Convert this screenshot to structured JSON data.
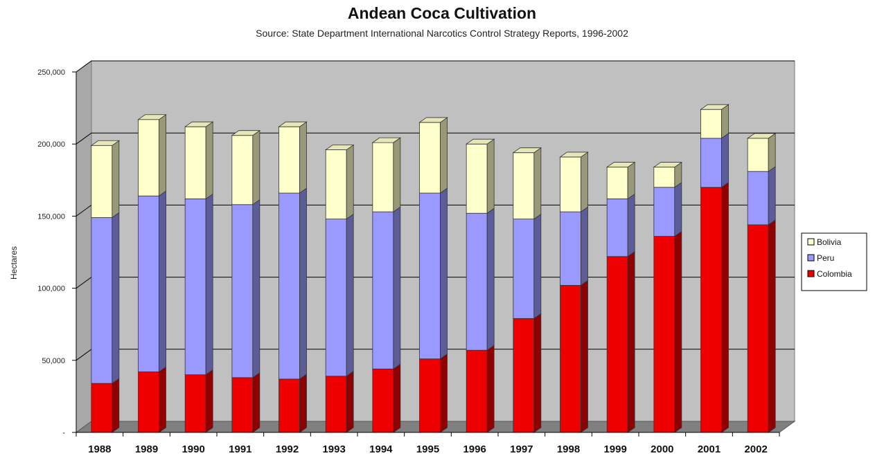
{
  "chart_data": {
    "type": "bar",
    "stacked": true,
    "three_d": true,
    "title": "Andean Coca Cultivation",
    "subtitle": "Source: State Department International Narcotics Control Strategy Reports, 1996-2002",
    "ylabel": "Hectares",
    "ylim": [
      0,
      250000
    ],
    "yticks": [
      "-",
      "50,000",
      "100,000",
      "150,000",
      "200,000",
      "250,000"
    ],
    "categories": [
      "1988",
      "1989",
      "1990",
      "1991",
      "1992",
      "1993",
      "1994",
      "1995",
      "1996",
      "1997",
      "1998",
      "1999",
      "2000",
      "2001",
      "2002"
    ],
    "series": [
      {
        "name": "Colombia",
        "color": "#ee0000",
        "values": [
          34000,
          42000,
          40000,
          38000,
          37000,
          39000,
          44000,
          51000,
          57000,
          79000,
          102000,
          122000,
          136000,
          170000,
          144000
        ]
      },
      {
        "name": "Peru",
        "color": "#9999ff",
        "values": [
          115000,
          122000,
          122000,
          120000,
          129000,
          109000,
          109000,
          115000,
          95000,
          69000,
          51000,
          40000,
          34000,
          34000,
          37000
        ]
      },
      {
        "name": "Bolivia",
        "color": "#ffffcc",
        "values": [
          50000,
          53000,
          50000,
          48000,
          46000,
          48000,
          48000,
          49000,
          48000,
          46000,
          38000,
          22000,
          14000,
          20000,
          23000
        ]
      }
    ],
    "legend_order": [
      "Bolivia",
      "Peru",
      "Colombia"
    ],
    "legend_position": "right",
    "grid": true,
    "background_color": "#c0c0c0",
    "floor_color": "#808080"
  }
}
